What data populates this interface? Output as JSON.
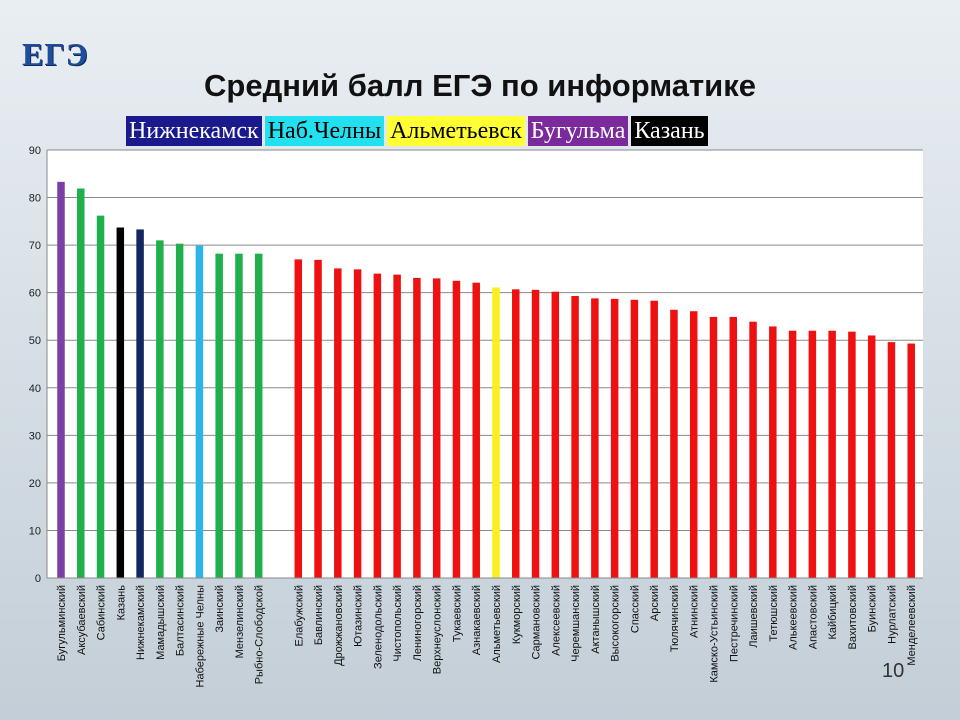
{
  "header": {
    "logo_text": "ЕГЭ",
    "title": "Средний балл ЕГЭ по информатике"
  },
  "legend": [
    {
      "label": "Нижнекамск",
      "bg": "#1a1a8c",
      "fg": "#ffffff"
    },
    {
      "label": "Наб.Челны",
      "bg": "#22e0ef",
      "fg": "#000000"
    },
    {
      "label": "Альметьевск",
      "bg": "#ffff33",
      "fg": "#000000"
    },
    {
      "label": "Бугульма",
      "bg": "#7b2a9b",
      "fg": "#ffffff"
    },
    {
      "label": "Казань",
      "bg": "#000000",
      "fg": "#ffffff"
    }
  ],
  "colors": {
    "purple": "#7b3fa6",
    "green": "#1fb04b",
    "black": "#000000",
    "navy": "#14285e",
    "cyan": "#29b6e8",
    "red": "#ee1111",
    "yellow": "#f7ef1f"
  },
  "slide_number": "10",
  "chart_data": {
    "type": "bar",
    "title": "Средний балл ЕГЭ по информатике",
    "xlabel": "",
    "ylabel": "",
    "ylim": [
      0,
      90
    ],
    "yticks": [
      0,
      10,
      20,
      30,
      40,
      50,
      60,
      70,
      80,
      90
    ],
    "grid": true,
    "categories": [
      "Бугульминский",
      "Аксубаевский",
      "Сабинский",
      "Казань",
      "Нижнекамский",
      "Мамадышский",
      "Балтасинский",
      "Набережные Челны",
      "Заинский",
      "Мензелинский",
      "Рыбно-Слободской",
      "",
      "Елабужский",
      "Бавлинский",
      "Дрожжановский",
      "Ютазинский",
      "Зеленодольский",
      "Чистопольский",
      "Лениногорский",
      "Верхнеуслонский",
      "Тукаевский",
      "Азнакаевский",
      "Альметьевский",
      "Кукморский",
      "Сармановский",
      "Алексеевский",
      "Черемшанский",
      "Актанышский",
      "Высокогорский",
      "Спасский",
      "Арский",
      "Тюлячинский",
      "Атнинский",
      "Камско-Устьинский",
      "Пестречинский",
      "Лаишевский",
      "Тетюшский",
      "Алькеевский",
      "Апастовский",
      "Кайбицкий",
      "Вахитовский",
      "Буинский",
      "Нурлатский",
      "Менделеевский"
    ],
    "values": [
      83.3,
      81.9,
      76.2,
      73.7,
      73.3,
      71.0,
      70.3,
      69.9,
      68.2,
      68.2,
      68.2,
      null,
      67.0,
      66.9,
      65.1,
      64.9,
      64.0,
      63.8,
      63.1,
      63.0,
      62.5,
      62.1,
      61.1,
      60.7,
      60.6,
      60.2,
      59.3,
      58.8,
      58.7,
      58.5,
      58.3,
      56.4,
      56.1,
      54.9,
      54.9,
      53.9,
      52.9,
      52.0,
      52.0,
      52.0,
      51.8,
      51.0,
      49.6,
      49.3
    ],
    "bar_colors": [
      "purple",
      "green",
      "green",
      "black",
      "navy",
      "green",
      "green",
      "cyan",
      "green",
      "green",
      "green",
      null,
      "red",
      "red",
      "red",
      "red",
      "red",
      "red",
      "red",
      "red",
      "red",
      "red",
      "yellow",
      "red",
      "red",
      "red",
      "red",
      "red",
      "red",
      "red",
      "red",
      "red",
      "red",
      "red",
      "red",
      "red",
      "red",
      "red",
      "red",
      "red",
      "red",
      "red",
      "red",
      "red"
    ]
  }
}
